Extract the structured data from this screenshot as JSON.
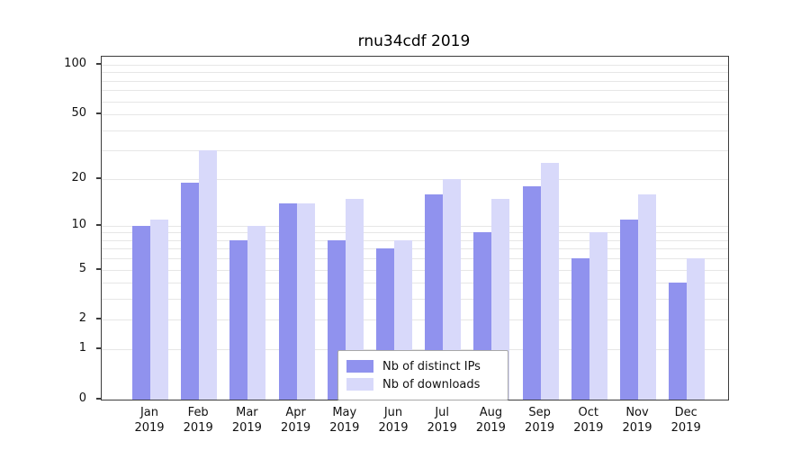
{
  "chart_data": {
    "type": "bar",
    "title": "rnu34cdf 2019",
    "categories": [
      "Jan",
      "Feb",
      "Mar",
      "Apr",
      "May",
      "Jun",
      "Jul",
      "Aug",
      "Sep",
      "Oct",
      "Nov",
      "Dec"
    ],
    "year": "2019",
    "series": [
      {
        "name": "Nb of distinct IPs",
        "color": "#9092ee",
        "values": [
          10,
          19,
          8,
          14,
          8,
          7,
          16,
          9,
          18,
          6,
          11,
          4
        ]
      },
      {
        "name": "Nb of downloads",
        "color": "#d8d9fa",
        "values": [
          11,
          30,
          10,
          14,
          15,
          8,
          20,
          15,
          25,
          9,
          16,
          6
        ]
      }
    ],
    "y_axis": {
      "scale": "log10(1+x)",
      "ticks": [
        0,
        1,
        2,
        5,
        10,
        20,
        50,
        100
      ],
      "gridlines": [
        1,
        2,
        3,
        4,
        5,
        6,
        7,
        8,
        9,
        10,
        20,
        30,
        40,
        50,
        60,
        70,
        80,
        90,
        100
      ],
      "max": 112
    },
    "legend_position": "bottom-center",
    "grid": true,
    "colors": {
      "gridline": "#e6e6e6",
      "axis": "#3c3c3c"
    }
  }
}
